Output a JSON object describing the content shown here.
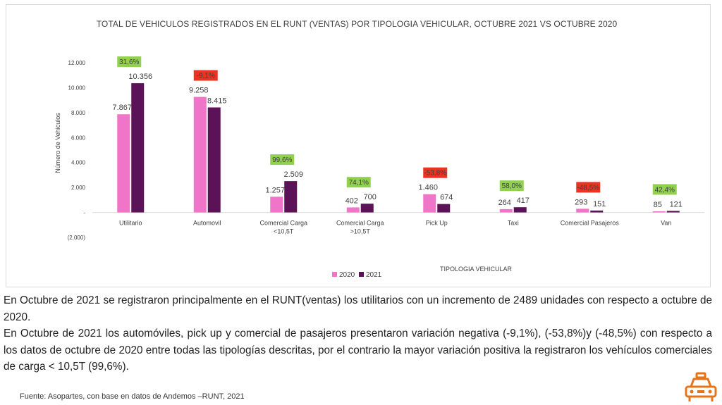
{
  "colors": {
    "series_2020": "#f075c9",
    "series_2021": "#5b1257",
    "positive_badge": "#92d050",
    "negative_badge": "#ea3323",
    "icon": "#e8741a"
  },
  "chart_data": {
    "type": "bar",
    "title": "TOTAL DE VEHICULOS REGISTRADOS EN EL RUNT (VENTAS) POR TIPOLOGIA VEHICULAR, OCTUBRE 2021 VS OCTUBRE 2020",
    "xlabel": "TIPOLOGIA VEHICULAR",
    "ylabel": "Número de Vehiculos",
    "ylim": [
      -2000,
      12000
    ],
    "yticks": [
      {
        "value": 12000,
        "label": "12.000"
      },
      {
        "value": 10000,
        "label": "10.000"
      },
      {
        "value": 8000,
        "label": "8.000"
      },
      {
        "value": 6000,
        "label": "6.000"
      },
      {
        "value": 4000,
        "label": "4.000"
      },
      {
        "value": 2000,
        "label": "2.000"
      },
      {
        "value": 0,
        "label": "-"
      },
      {
        "value": -2000,
        "label": "(2.000)"
      }
    ],
    "grid": false,
    "legend_position": "bottom",
    "categories": [
      [
        "Utilitario"
      ],
      [
        "Automovil"
      ],
      [
        "Comercial Carga",
        "<10,5T"
      ],
      [
        "Comercial Carga",
        ">10,5T"
      ],
      [
        "Pick Up"
      ],
      [
        "Taxi"
      ],
      [
        "Comercial Pasajeros"
      ],
      [
        "Van"
      ]
    ],
    "series": [
      {
        "name": "2020",
        "values": [
          7867,
          9258,
          1257,
          402,
          1460,
          264,
          293,
          85
        ],
        "labels": [
          "7.867",
          "9.258",
          "1.257",
          "402",
          "1.460",
          "264",
          "293",
          "85"
        ]
      },
      {
        "name": "2021",
        "values": [
          10356,
          8415,
          2509,
          700,
          674,
          417,
          151,
          121
        ],
        "labels": [
          "10.356",
          "8.415",
          "2.509",
          "700",
          "674",
          "417",
          "151",
          "121"
        ]
      }
    ],
    "variation": [
      {
        "label": "31,6%",
        "value": 31.6,
        "positive": true
      },
      {
        "label": "-9,1%",
        "value": -9.1,
        "positive": false
      },
      {
        "label": "99,6%",
        "value": 99.6,
        "positive": true
      },
      {
        "label": "74,1%",
        "value": 74.1,
        "positive": true
      },
      {
        "label": "-53,8%",
        "value": -53.8,
        "positive": false
      },
      {
        "label": "58,0%",
        "value": 58.0,
        "positive": true
      },
      {
        "label": "-48,5%",
        "value": -48.5,
        "positive": false
      },
      {
        "label": "42,4%",
        "value": 42.4,
        "positive": true
      }
    ]
  },
  "description": {
    "paragraph1": "En Octubre de 2021 se registraron principalmente en el RUNT(ventas) los utilitarios con un incremento de 2489 unidades con respecto a octubre de 2020.",
    "paragraph2": "En Octubre de 2021 los automóviles, pick up y comercial de pasajeros presentaron variación negativa (-9,1%), (-53,8%)y (-48,5%) con respecto a los datos de octubre de 2020 entre todas las tipologías descritas, por el contrario la mayor variación positiva la registraron los vehículos comerciales de carga < 10,5T (99,6%)."
  },
  "source": "Fuente: Asopartes, con base en datos de Andemos –RUNT, 2021",
  "icons": {
    "corner": "taxi-icon"
  }
}
